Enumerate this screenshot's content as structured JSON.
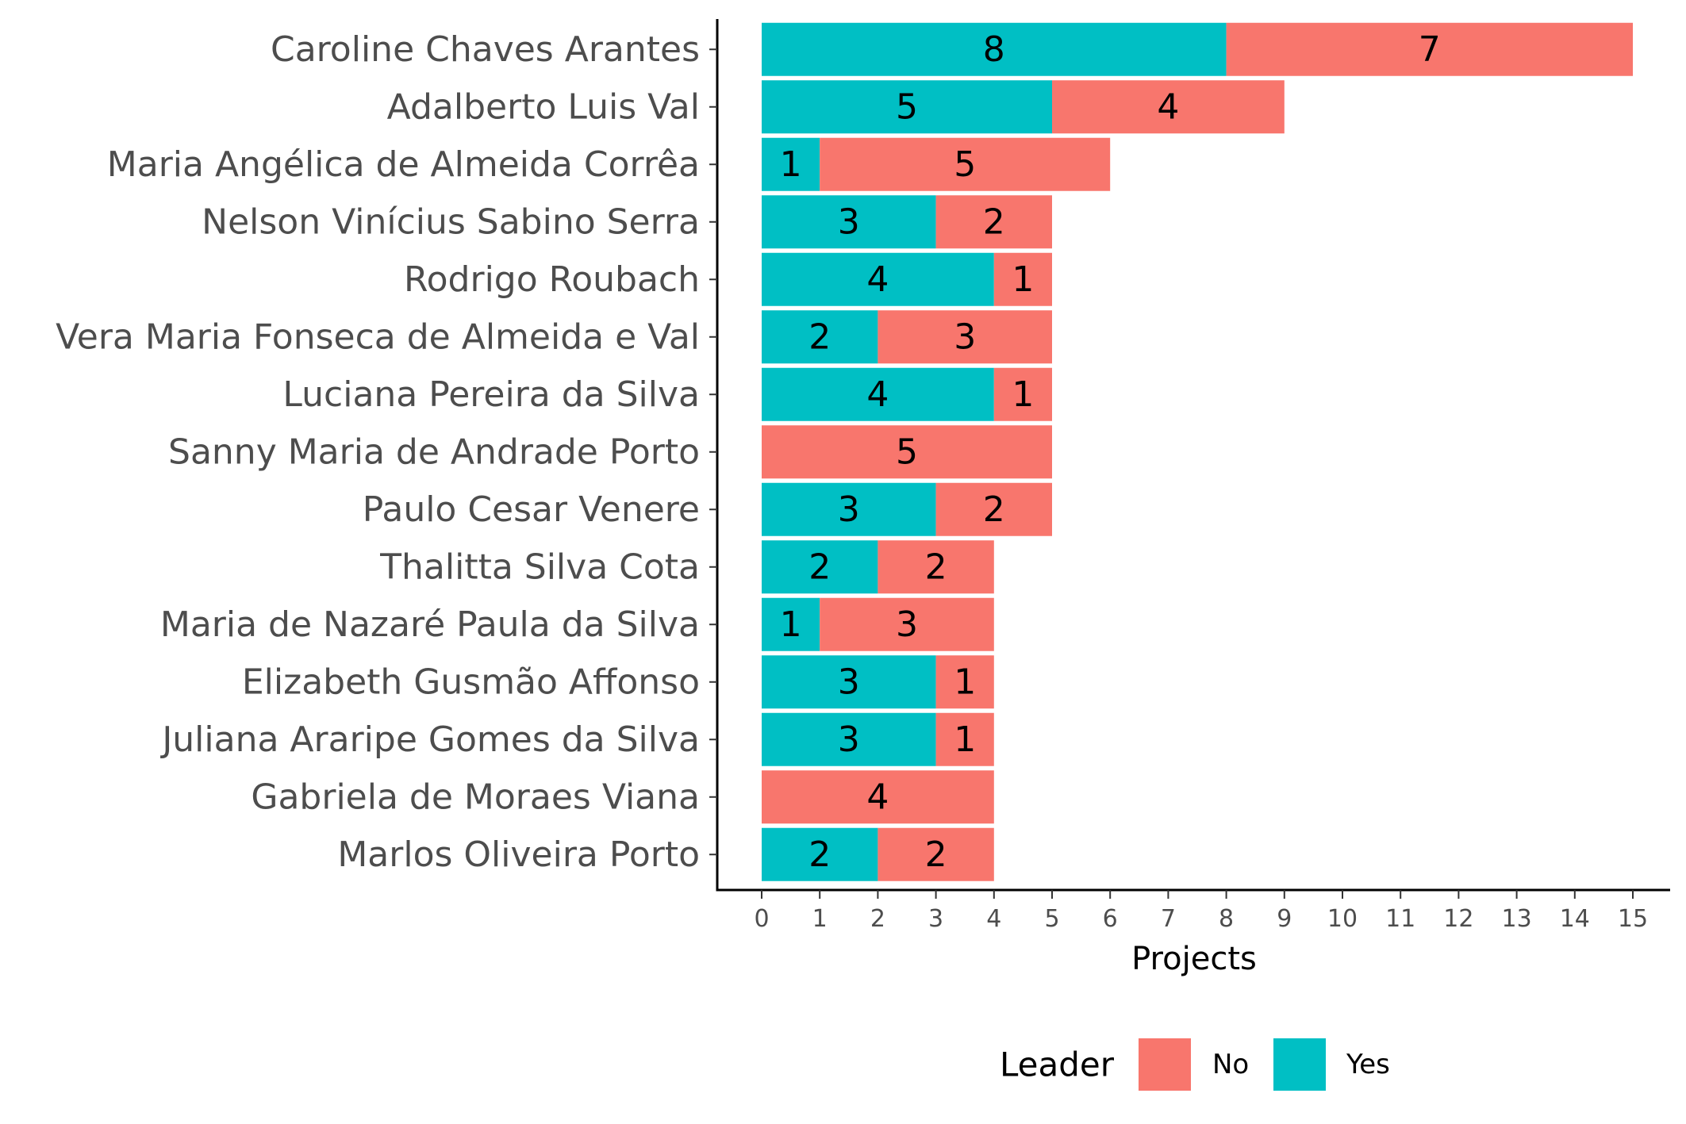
{
  "chart_data": {
    "type": "bar",
    "orientation": "horizontal",
    "stacked": true,
    "title": "",
    "xlabel": "Projects",
    "ylabel": "",
    "xlim": [
      0,
      15
    ],
    "x_ticks": [
      0,
      1,
      2,
      3,
      4,
      5,
      6,
      7,
      8,
      9,
      10,
      11,
      12,
      13,
      14,
      15
    ],
    "grid": false,
    "legend_position": "bottom",
    "legend_title": "Leader",
    "categories": [
      "Caroline Chaves Arantes",
      "Adalberto Luis Val",
      "Maria Angélica de Almeida Corrêa",
      "Nelson Vinícius Sabino Serra",
      "Rodrigo Roubach",
      "Vera Maria Fonseca de Almeida e Val",
      "Luciana Pereira da Silva",
      "Sanny Maria de Andrade Porto",
      "Paulo Cesar Venere",
      "Thalitta Silva Cota",
      "Maria de Nazaré Paula da Silva",
      "Elizabeth Gusmão Affonso",
      "Juliana Araripe Gomes da Silva",
      "Gabriela de Moraes Viana",
      "Marlos Oliveira Porto"
    ],
    "series": [
      {
        "name": "Yes",
        "color": "#00bfc4",
        "values": [
          8,
          5,
          1,
          3,
          4,
          2,
          4,
          0,
          3,
          2,
          1,
          3,
          3,
          0,
          2
        ]
      },
      {
        "name": "No",
        "color": "#f8766d",
        "values": [
          7,
          4,
          5,
          2,
          1,
          3,
          1,
          5,
          2,
          2,
          3,
          1,
          1,
          4,
          2
        ]
      }
    ],
    "legend_order": [
      "No",
      "Yes"
    ]
  }
}
